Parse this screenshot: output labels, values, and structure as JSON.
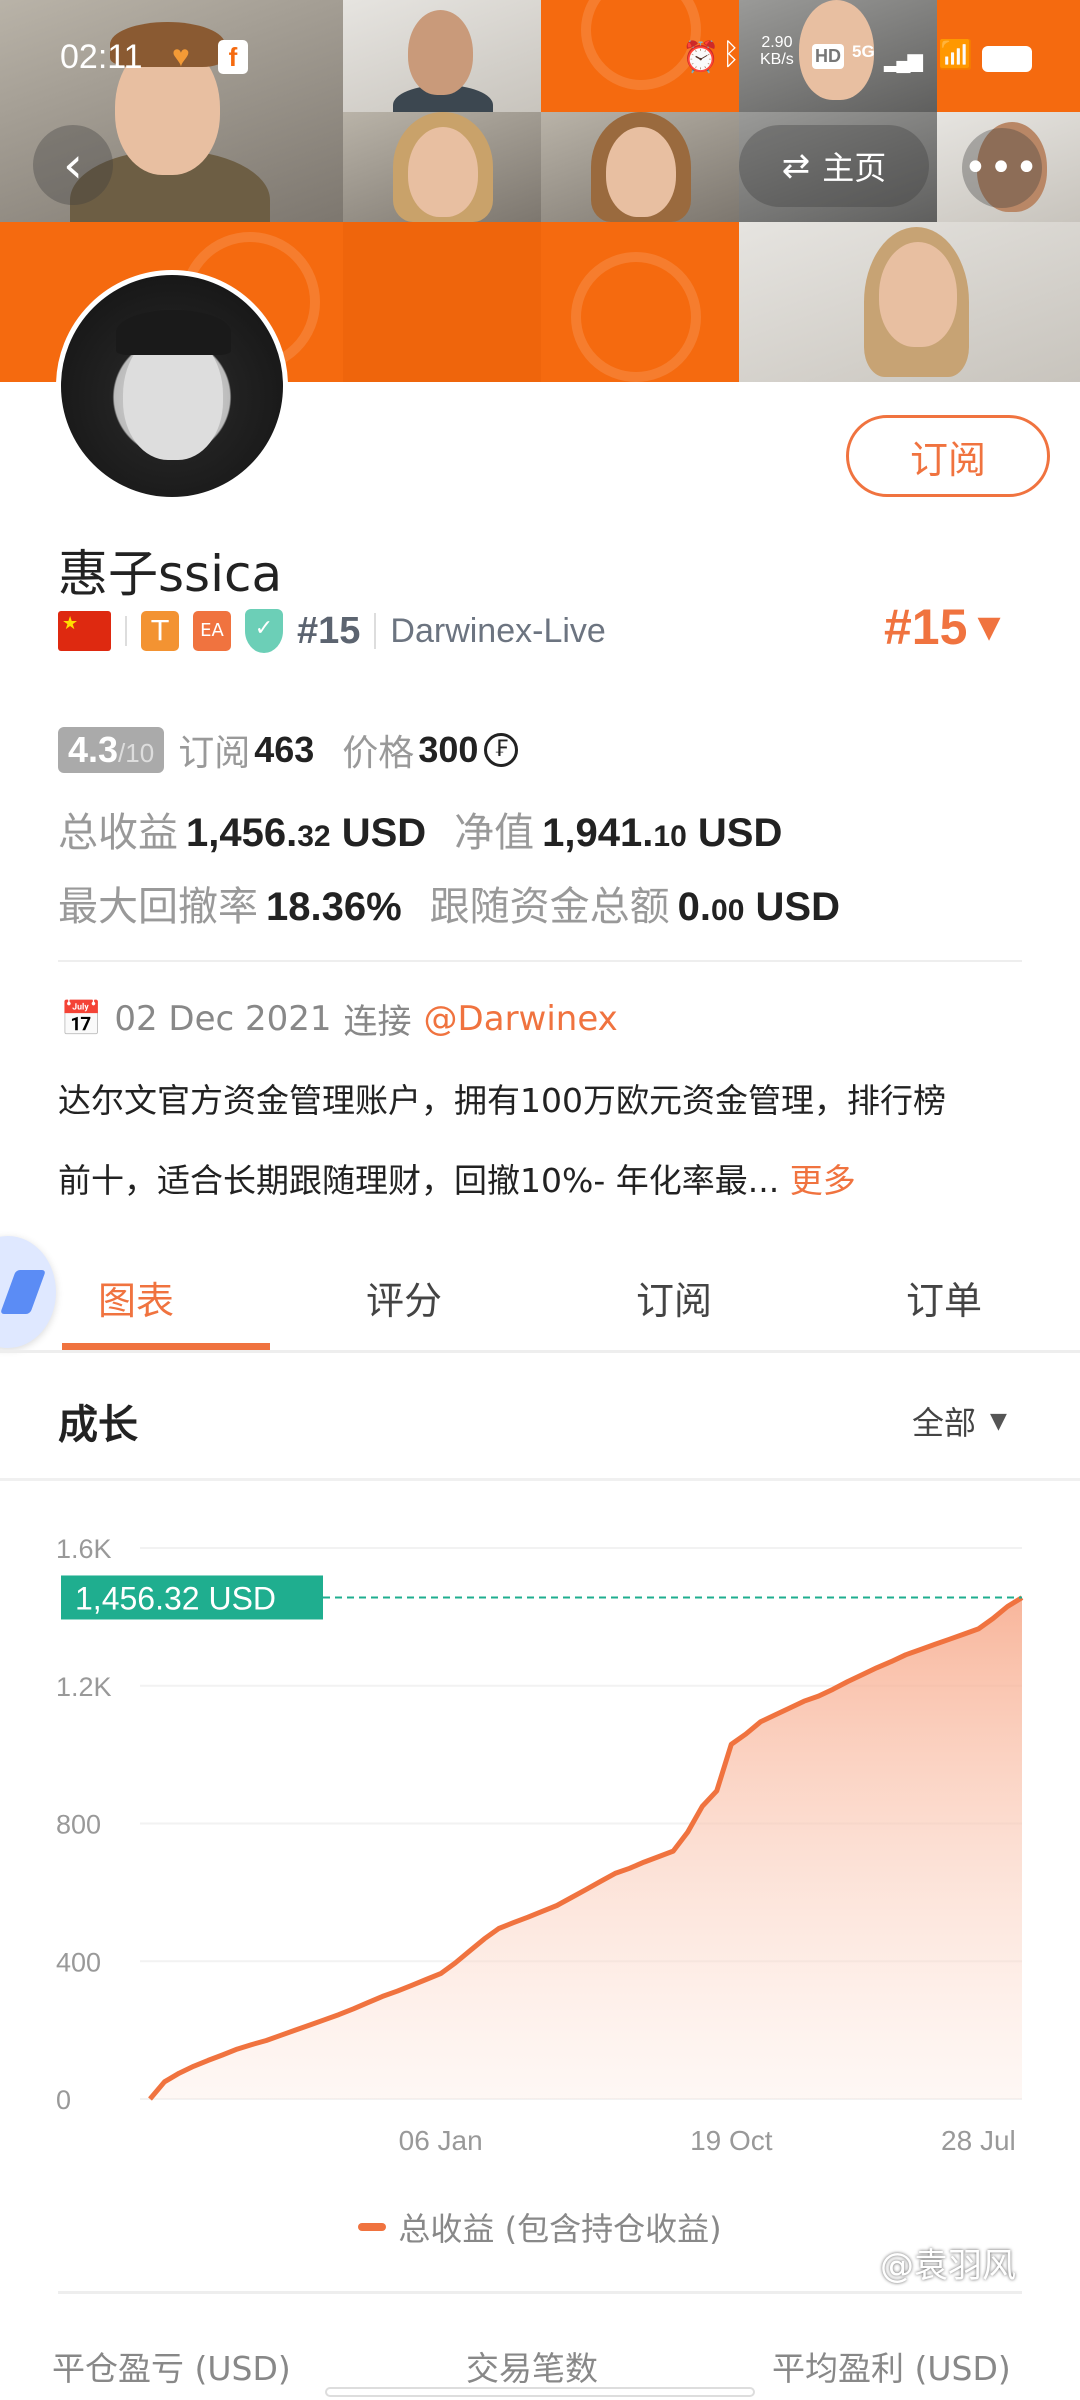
{
  "status_bar": {
    "time": "02:11",
    "net_speed_value": "2.90",
    "net_speed_unit": "KB/s",
    "hd": "HD",
    "network": "5G"
  },
  "header": {
    "home_label": "主页",
    "back_icon": "chevron-left-icon",
    "swap_icon": "swap-icon",
    "more_icon": "more-dots-icon"
  },
  "profile": {
    "name": "惠子ssica",
    "subscribe_label": "订阅",
    "badges": {
      "flag": "china-flag",
      "t": "T",
      "ea": "EA",
      "rank": "#15",
      "server": "Darwinex-Live"
    },
    "rank_big": "#15",
    "rating": "4.3",
    "rating_max": "/10",
    "subs_label": "订阅",
    "subs_value": "463",
    "price_label": "价格",
    "price_value": "300",
    "total_profit_label": "总收益",
    "total_profit_int": "1,456.",
    "total_profit_dec": "32",
    "total_profit_unit": "USD",
    "equity_label": "净值",
    "equity_int": "1,941.",
    "equity_dec": "10",
    "equity_unit": "USD",
    "drawdown_label": "最大回撤率",
    "drawdown_value": "18.36%",
    "follow_label": "跟随资金总额",
    "follow_int": "0.",
    "follow_dec": "00",
    "follow_unit": "USD",
    "date": "02 Dec 2021",
    "connect_label": "连接",
    "broker": "@Darwinex",
    "desc_line1": "达尔文官方资金管理账户，拥有100万欧元资金管理，排行榜",
    "desc_line2": "前十，适合长期跟随理财，回撤10%- 年化率最...",
    "more_label": "更多"
  },
  "tabs": [
    {
      "label": "图表",
      "active": true
    },
    {
      "label": "评分"
    },
    {
      "label": "订阅"
    },
    {
      "label": "订单"
    }
  ],
  "growth": {
    "title": "成长",
    "filter": "全部"
  },
  "colors": {
    "accent": "#f0733f",
    "teal": "#1fae8f",
    "fill": "#fbd5c4"
  },
  "chart_data": {
    "type": "area",
    "yticks": [
      "0",
      "400",
      "800",
      "1.2K",
      "1.6K"
    ],
    "ytick_values": [
      0,
      400,
      800,
      1200,
      1600
    ],
    "ylim": [
      0,
      1600
    ],
    "xticks": [
      {
        "label": "06 Jan",
        "index": 20
      },
      {
        "label": "19 Oct",
        "index": 40
      },
      {
        "label": "28 Jul",
        "index": 57
      }
    ],
    "current_label": "1,456.32 USD",
    "current_value": 1456.32,
    "legend": "总收益 (包含持仓收益)",
    "series": [
      {
        "name": "总收益 (包含持仓收益)",
        "values": [
          0,
          50,
          75,
          95,
          112,
          128,
          145,
          158,
          170,
          185,
          200,
          215,
          230,
          245,
          262,
          280,
          298,
          313,
          330,
          347,
          364,
          395,
          430,
          465,
          495,
          512,
          528,
          545,
          562,
          585,
          608,
          632,
          655,
          670,
          688,
          704,
          720,
          775,
          850,
          895,
          1030,
          1060,
          1095,
          1115,
          1135,
          1155,
          1170,
          1190,
          1212,
          1232,
          1252,
          1270,
          1290,
          1305,
          1320,
          1335,
          1350,
          1365,
          1395,
          1430,
          1456
        ]
      }
    ]
  },
  "stats_headers": [
    "平仓盈亏 (USD)",
    "交易笔数",
    "平均盈利 (USD)"
  ],
  "watermark": "@袁羽风"
}
